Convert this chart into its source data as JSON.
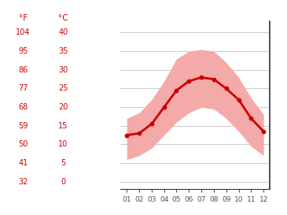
{
  "months": [
    1,
    2,
    3,
    4,
    5,
    6,
    7,
    8,
    9,
    10,
    11,
    12
  ],
  "avg_temp": [
    12.5,
    13.0,
    15.5,
    20.0,
    24.5,
    27.0,
    28.0,
    27.5,
    25.0,
    22.0,
    17.0,
    13.5
  ],
  "max_temp": [
    17.0,
    18.5,
    22.0,
    27.0,
    33.0,
    35.0,
    35.5,
    35.0,
    32.0,
    28.0,
    22.5,
    18.0
  ],
  "min_temp": [
    6.0,
    7.0,
    9.0,
    12.5,
    16.0,
    18.5,
    20.0,
    19.5,
    17.0,
    13.5,
    9.5,
    7.0
  ],
  "yticks_c": [
    0,
    5,
    10,
    15,
    20,
    25,
    30,
    35,
    40
  ],
  "yticks_f": [
    32,
    41,
    50,
    59,
    68,
    77,
    86,
    95,
    104
  ],
  "ylim": [
    -2,
    43
  ],
  "xlim": [
    0.5,
    12.5
  ],
  "line_color": "#cc0000",
  "band_color": "#f5aaaa",
  "background_color": "#ffffff",
  "grid_color": "#cccccc",
  "tick_label_color": "#cc0000",
  "xtick_color": "#555555",
  "left_label_f": "°F",
  "left_label_c": "°C",
  "month_labels": [
    "01",
    "02",
    "03",
    "04",
    "05",
    "06",
    "07",
    "08",
    "09",
    "10",
    "11",
    "12"
  ],
  "figsize": [
    3.65,
    2.73
  ],
  "dpi": 100
}
